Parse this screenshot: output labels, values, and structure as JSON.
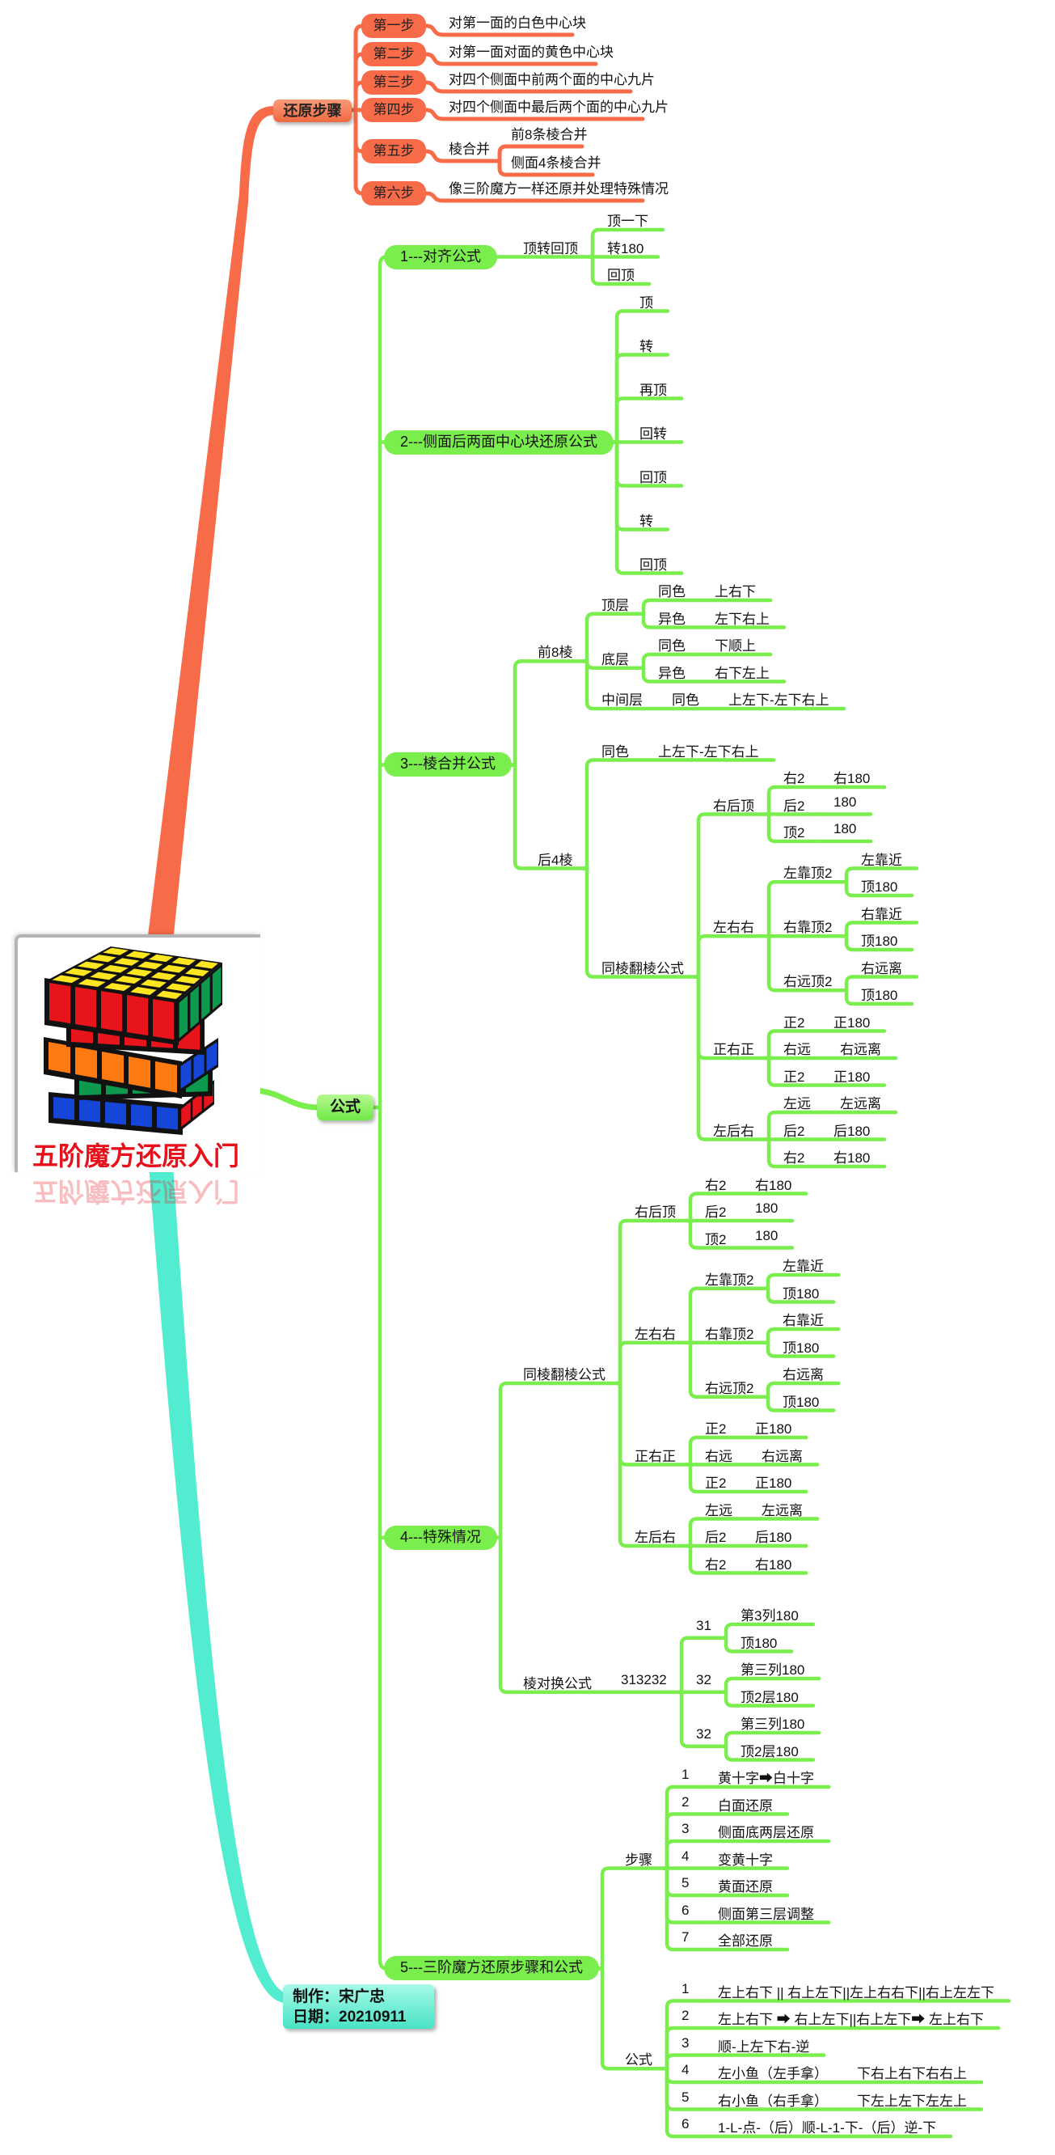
{
  "colors": {
    "steps": "#f76b48",
    "formula": "#7aee4c",
    "author": "#52ecd0",
    "title": "#e8101a"
  },
  "root": {
    "title": "五阶魔方还原入门"
  },
  "steps_branch": {
    "label": "还原步骤",
    "steps": [
      {
        "label": "第一步",
        "text": "对第一面的白色中心块"
      },
      {
        "label": "第二步",
        "text": "对第一面对面的黄色中心块"
      },
      {
        "label": "第三步",
        "text": "对四个侧面中前两个面的中心九片"
      },
      {
        "label": "第四步",
        "text": "对四个侧面中最后两个面的中心九片"
      },
      {
        "label": "第五步",
        "text": "棱合并",
        "children": [
          "前8条棱合并",
          "侧面4条棱合并"
        ]
      },
      {
        "label": "第六步",
        "text": "像三阶魔方一样还原并处理特殊情况"
      }
    ]
  },
  "formula_branch": {
    "label": "公式",
    "c": [
      {
        "t": "1---对齐公式",
        "c": [
          {
            "t": "顶转回顶",
            "c": [
              {
                "t": "顶一下"
              },
              {
                "t": "转180"
              },
              {
                "t": "回顶"
              }
            ]
          }
        ]
      },
      {
        "t": "2---侧面后两面中心块还原公式",
        "c": [
          {
            "t": "顶"
          },
          {
            "t": "转"
          },
          {
            "t": "再顶"
          },
          {
            "t": "回转"
          },
          {
            "t": "回顶"
          },
          {
            "t": "转"
          },
          {
            "t": "回顶"
          }
        ]
      },
      {
        "t": "3---棱合并公式",
        "c": [
          {
            "t": "前8棱",
            "c": [
              {
                "t": "顶层",
                "c": [
                  {
                    "t": "同色",
                    "c": [
                      {
                        "t": "上右下"
                      }
                    ]
                  },
                  {
                    "t": "异色",
                    "c": [
                      {
                        "t": "左下右上"
                      }
                    ]
                  }
                ]
              },
              {
                "t": "底层",
                "c": [
                  {
                    "t": "同色",
                    "c": [
                      {
                        "t": "下顺上"
                      }
                    ]
                  },
                  {
                    "t": "异色",
                    "c": [
                      {
                        "t": "右下左上"
                      }
                    ]
                  }
                ]
              },
              {
                "t": "中间层",
                "c": [
                  {
                    "t": "同色",
                    "c": [
                      {
                        "t": "上左下-左下右上"
                      }
                    ]
                  }
                ]
              }
            ]
          },
          {
            "t": "后4棱",
            "c": [
              {
                "t": "同色",
                "c": [
                  {
                    "t": "上左下-左下右上"
                  }
                ]
              },
              {
                "t": "同棱翻棱公式",
                "c": [
                  {
                    "t": "右后顶",
                    "c": [
                      {
                        "t": "右2",
                        "c": [
                          {
                            "t": "右180"
                          }
                        ]
                      },
                      {
                        "t": "后2",
                        "c": [
                          {
                            "t": "180"
                          }
                        ]
                      },
                      {
                        "t": "顶2",
                        "c": [
                          {
                            "t": "180"
                          }
                        ]
                      }
                    ]
                  },
                  {
                    "t": "左右右",
                    "c": [
                      {
                        "t": "左靠顶2",
                        "c": [
                          {
                            "t": "左靠近"
                          },
                          {
                            "t": "顶180"
                          }
                        ]
                      },
                      {
                        "t": "右靠顶2",
                        "c": [
                          {
                            "t": "右靠近"
                          },
                          {
                            "t": "顶180"
                          }
                        ]
                      },
                      {
                        "t": "右远顶2",
                        "c": [
                          {
                            "t": "右远离"
                          },
                          {
                            "t": "顶180"
                          }
                        ]
                      }
                    ]
                  },
                  {
                    "t": "正右正",
                    "c": [
                      {
                        "t": "正2",
                        "c": [
                          {
                            "t": "正180"
                          }
                        ]
                      },
                      {
                        "t": "右远",
                        "c": [
                          {
                            "t": "右远离"
                          }
                        ]
                      },
                      {
                        "t": "正2",
                        "c": [
                          {
                            "t": "正180"
                          }
                        ]
                      }
                    ]
                  },
                  {
                    "t": "左后右",
                    "c": [
                      {
                        "t": "左远",
                        "c": [
                          {
                            "t": "左远离"
                          }
                        ]
                      },
                      {
                        "t": "后2",
                        "c": [
                          {
                            "t": "后180"
                          }
                        ]
                      },
                      {
                        "t": "右2",
                        "c": [
                          {
                            "t": "右180"
                          }
                        ]
                      }
                    ]
                  }
                ]
              }
            ]
          }
        ]
      },
      {
        "t": "4---特殊情况",
        "c": [
          {
            "t": "同棱翻棱公式",
            "c": [
              {
                "t": "右后顶",
                "c": [
                  {
                    "t": "右2",
                    "c": [
                      {
                        "t": "右180"
                      }
                    ]
                  },
                  {
                    "t": "后2",
                    "c": [
                      {
                        "t": "180"
                      }
                    ]
                  },
                  {
                    "t": "顶2",
                    "c": [
                      {
                        "t": "180"
                      }
                    ]
                  }
                ]
              },
              {
                "t": "左右右",
                "c": [
                  {
                    "t": "左靠顶2",
                    "c": [
                      {
                        "t": "左靠近"
                      },
                      {
                        "t": "顶180"
                      }
                    ]
                  },
                  {
                    "t": "右靠顶2",
                    "c": [
                      {
                        "t": "右靠近"
                      },
                      {
                        "t": "顶180"
                      }
                    ]
                  },
                  {
                    "t": "右远顶2",
                    "c": [
                      {
                        "t": "右远离"
                      },
                      {
                        "t": "顶180"
                      }
                    ]
                  }
                ]
              },
              {
                "t": "正右正",
                "c": [
                  {
                    "t": "正2",
                    "c": [
                      {
                        "t": "正180"
                      }
                    ]
                  },
                  {
                    "t": "右远",
                    "c": [
                      {
                        "t": "右远离"
                      }
                    ]
                  },
                  {
                    "t": "正2",
                    "c": [
                      {
                        "t": "正180"
                      }
                    ]
                  }
                ]
              },
              {
                "t": "左后右",
                "c": [
                  {
                    "t": "左远",
                    "c": [
                      {
                        "t": "左远离"
                      }
                    ]
                  },
                  {
                    "t": "后2",
                    "c": [
                      {
                        "t": "后180"
                      }
                    ]
                  },
                  {
                    "t": "右2",
                    "c": [
                      {
                        "t": "右180"
                      }
                    ]
                  }
                ]
              }
            ]
          },
          {
            "t": "棱对换公式",
            "c": [
              {
                "t": "313232",
                "c": [
                  {
                    "t": "31",
                    "c": [
                      {
                        "t": "第3列180"
                      },
                      {
                        "t": "顶180"
                      }
                    ]
                  },
                  {
                    "t": "32",
                    "c": [
                      {
                        "t": "第三列180"
                      },
                      {
                        "t": "顶2层180"
                      }
                    ]
                  },
                  {
                    "t": "32",
                    "c": [
                      {
                        "t": "第三列180"
                      },
                      {
                        "t": "顶2层180"
                      }
                    ]
                  }
                ]
              }
            ]
          }
        ]
      },
      {
        "t": "5---三阶魔方还原步骤和公式",
        "c": [
          {
            "t": "步骤",
            "c": [
              {
                "t": "1",
                "c": [
                  {
                    "t": "黄十字➡白十字"
                  }
                ]
              },
              {
                "t": "2",
                "c": [
                  {
                    "t": "白面还原"
                  }
                ]
              },
              {
                "t": "3",
                "c": [
                  {
                    "t": "侧面底两层还原"
                  }
                ]
              },
              {
                "t": "4",
                "c": [
                  {
                    "t": "变黄十字"
                  }
                ]
              },
              {
                "t": "5",
                "c": [
                  {
                    "t": "黄面还原"
                  }
                ]
              },
              {
                "t": "6",
                "c": [
                  {
                    "t": "侧面第三层调整"
                  }
                ]
              },
              {
                "t": "7",
                "c": [
                  {
                    "t": "全部还原"
                  }
                ]
              }
            ]
          },
          {
            "t": "公式",
            "c": [
              {
                "t": "1",
                "c": [
                  {
                    "t": "左上右下 || 右上左下||左上右右下||右上左左下"
                  }
                ]
              },
              {
                "t": "2",
                "c": [
                  {
                    "t": "左上右下 ➡ 右上左下||右上左下➡ 左上右下"
                  }
                ]
              },
              {
                "t": "3",
                "c": [
                  {
                    "t": "顺-上左下右-逆"
                  }
                ]
              },
              {
                "t": "4",
                "c": [
                  {
                    "t": "左小鱼（左手拿）",
                    "c": [
                      {
                        "t": "下右上右下右右上"
                      }
                    ]
                  }
                ]
              },
              {
                "t": "5",
                "c": [
                  {
                    "t": "右小鱼（右手拿）",
                    "c": [
                      {
                        "t": "下左上左下左左上"
                      }
                    ]
                  }
                ]
              },
              {
                "t": "6",
                "c": [
                  {
                    "t": "1-L-点-（后）顺-L-1-下-（后）逆-下"
                  }
                ]
              }
            ]
          }
        ]
      }
    ]
  },
  "author": {
    "maker": "制作：宋广忠",
    "date": "日期：20210911"
  }
}
